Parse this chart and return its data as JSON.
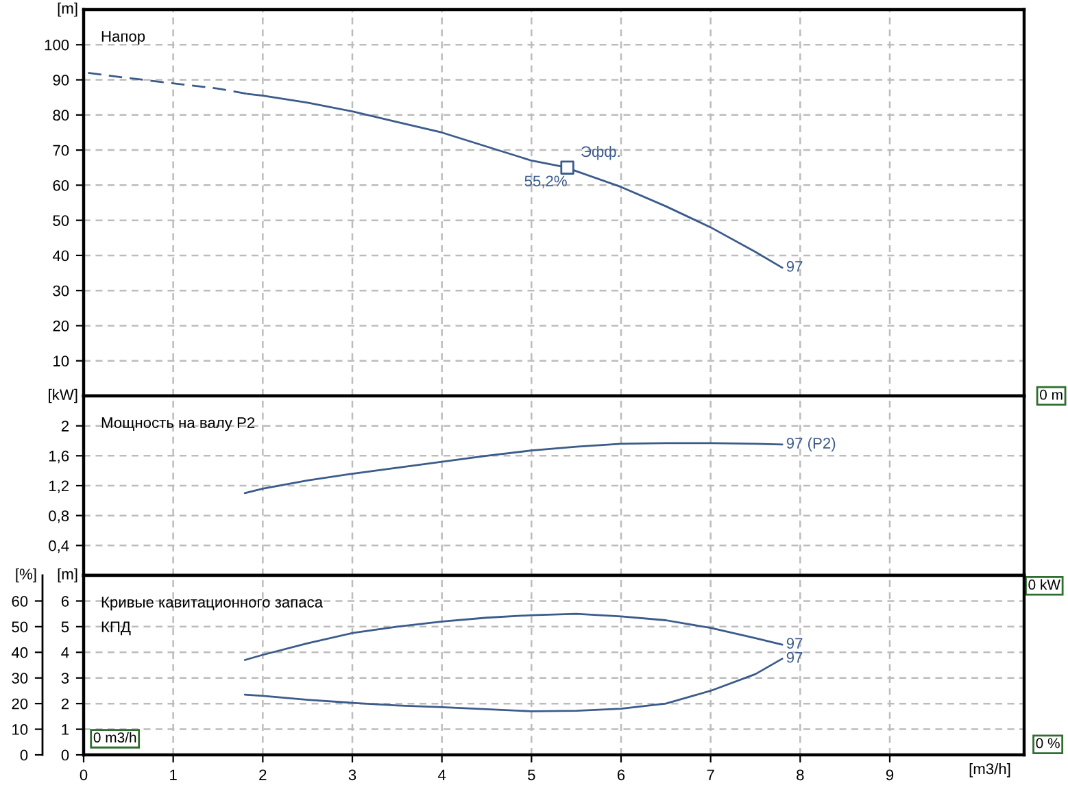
{
  "chart_data": [
    {
      "type": "line",
      "title": "Напор",
      "ylabel": "[m]",
      "xlim": [
        0,
        10.5
      ],
      "xticks": [
        0,
        1,
        2,
        3,
        4,
        5,
        6,
        7,
        8,
        9
      ],
      "ylim": [
        0,
        110
      ],
      "yticks": [
        10,
        20,
        30,
        40,
        50,
        60,
        70,
        80,
        90,
        100
      ],
      "grid": true,
      "tick_labels": "y",
      "series": [
        {
          "color": "#3b5b8b",
          "line_style": "dashed",
          "x": [
            0.05,
            0.5,
            1,
            1.5,
            1.83
          ],
          "values": [
            92,
            90.5,
            89,
            87.5,
            86
          ]
        },
        {
          "name": "97",
          "color": "#3b5b8b",
          "line_style": "solid",
          "x": [
            1.83,
            2,
            2.5,
            3,
            3.5,
            4,
            4.5,
            5,
            5.4,
            5.5,
            6,
            6.5,
            7,
            7.5,
            7.8
          ],
          "values": [
            86,
            85.5,
            83.5,
            81,
            78,
            75,
            71,
            67,
            65,
            64,
            59.5,
            54,
            48,
            41,
            36.5
          ]
        },
        {
          "type": "scatter",
          "marker": "square",
          "color": "#3b5b8b",
          "x": [
            5.4
          ],
          "values": [
            65
          ]
        }
      ],
      "annotations": [
        {
          "text": "Эфф.",
          "x": 5.4,
          "y": 65
        },
        {
          "text": "55,2%",
          "x": 5.4,
          "y": 65
        },
        "0 m"
      ]
    },
    {
      "type": "line",
      "title": "Мощность на валу P2",
      "ylabel": "[kW]",
      "xlim": [
        0,
        10.5
      ],
      "xticks": [
        0,
        1,
        2,
        3,
        4,
        5,
        6,
        7,
        8,
        9
      ],
      "ylim": [
        0,
        2.4
      ],
      "yticks": [
        {
          "value": 0.4,
          "label": "0,4"
        },
        {
          "value": 0.8,
          "label": "0,8"
        },
        {
          "value": 1.2,
          "label": "1,2"
        },
        {
          "value": 1.6,
          "label": "1,6"
        },
        {
          "value": 2,
          "label": "2"
        }
      ],
      "grid": true,
      "tick_labels": "y",
      "series": [
        {
          "name": "97 (P2)",
          "color": "#3b5b8b",
          "x": [
            1.8,
            2,
            2.5,
            3,
            3.5,
            4,
            4.5,
            5,
            5.5,
            6,
            6.5,
            7,
            7.5,
            7.8
          ],
          "values": [
            1.1,
            1.16,
            1.27,
            1.36,
            1.44,
            1.52,
            1.6,
            1.67,
            1.72,
            1.76,
            1.77,
            1.77,
            1.76,
            1.75
          ]
        }
      ],
      "annotations": [
        "0 kW"
      ]
    },
    {
      "type": "line",
      "title": "Кривые кавитационного запаса",
      "subtitle": "КПД",
      "ylabel": "[m]",
      "y2label": "[%]",
      "xlabel": "[m3/h]",
      "xlim": [
        0,
        10.5
      ],
      "xticks": [
        0,
        1,
        2,
        3,
        4,
        5,
        6,
        7,
        8,
        9
      ],
      "ylim": [
        0,
        7
      ],
      "yticks": [
        0,
        1,
        2,
        3,
        4,
        5,
        6
      ],
      "y2lim": [
        0,
        70
      ],
      "y2ticks": [
        0,
        10,
        20,
        30,
        40,
        50,
        60
      ],
      "grid": true,
      "series": [
        {
          "name": "97",
          "color": "#3b5b8b",
          "axis": "y2",
          "x": [
            1.8,
            2,
            2.5,
            3,
            3.5,
            4,
            4.5,
            5,
            5.5,
            6,
            6.5,
            7,
            7.5,
            7.8
          ],
          "values": [
            37,
            39,
            43.5,
            47.5,
            50,
            52,
            53.5,
            54.5,
            55,
            54,
            52.5,
            49.5,
            45.5,
            43
          ]
        },
        {
          "name": "97",
          "color": "#3b5b8b",
          "x": [
            1.8,
            2,
            2.5,
            3,
            3.5,
            4,
            4.5,
            5,
            5.5,
            6,
            6.5,
            7,
            7.5,
            7.8
          ],
          "values": [
            2.35,
            2.3,
            2.15,
            2.03,
            1.93,
            1.86,
            1.78,
            1.7,
            1.72,
            1.8,
            2.0,
            2.5,
            3.15,
            3.75
          ]
        }
      ],
      "annotations": [
        "0 m3/h",
        "0 %"
      ]
    }
  ]
}
